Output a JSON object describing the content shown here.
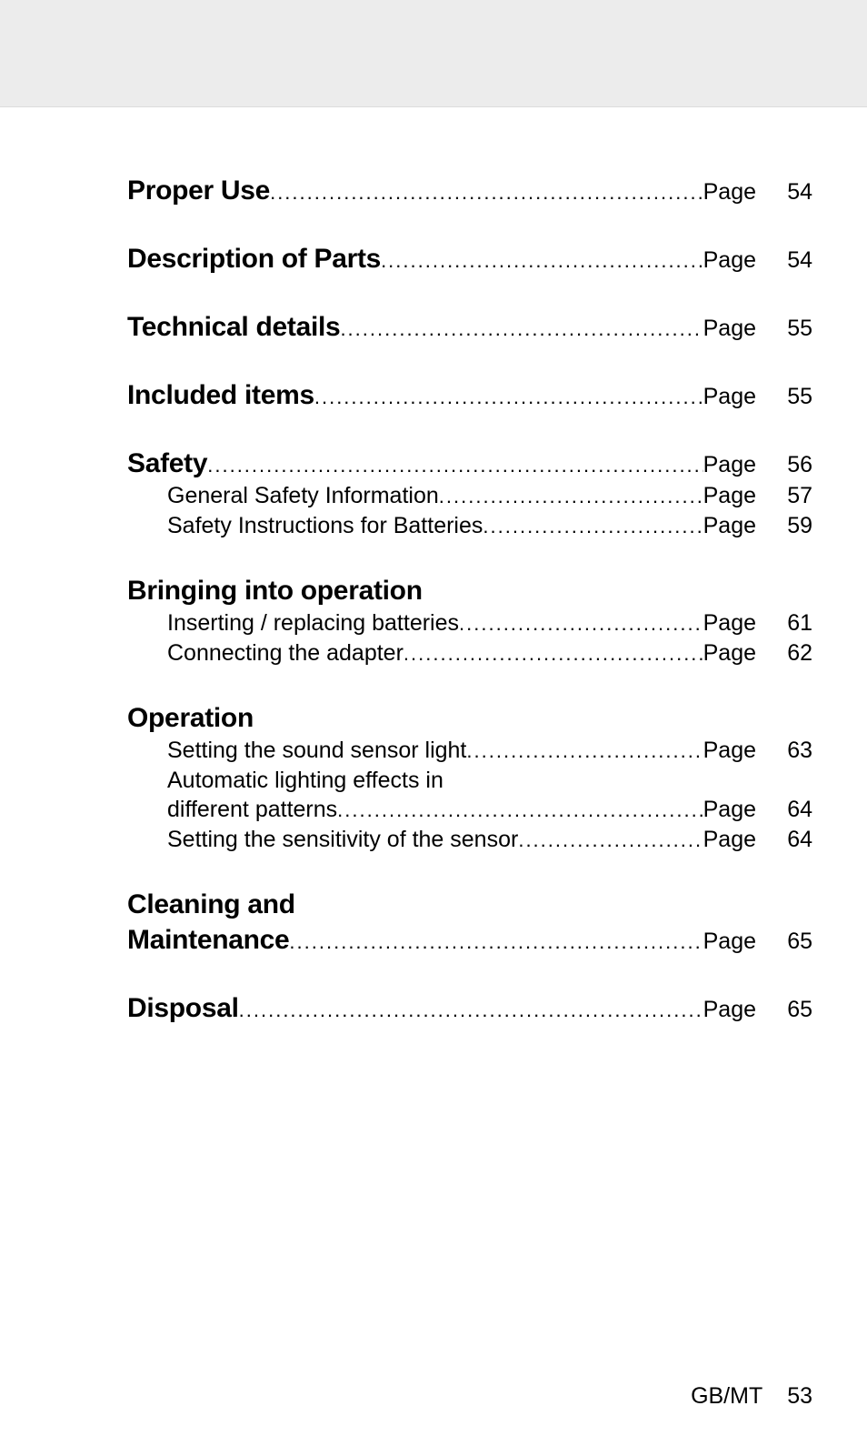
{
  "page_label": "Page",
  "sections": [
    {
      "heading": "Proper Use",
      "page": "54",
      "subs": [],
      "heading_has_page": true
    },
    {
      "heading": "Description of Parts",
      "page": "54",
      "subs": [],
      "heading_has_page": true
    },
    {
      "heading": "Technical details",
      "page": "55",
      "subs": [],
      "heading_has_page": true
    },
    {
      "heading": "Included items",
      "page": "55",
      "subs": [],
      "heading_has_page": true
    },
    {
      "heading": "Safety",
      "page": "56",
      "heading_has_page": true,
      "subs": [
        {
          "title": "General Safety Information",
          "page": "57"
        },
        {
          "title": "Safety Instructions for Batteries",
          "page": "59"
        }
      ]
    },
    {
      "heading": "Bringing into operation",
      "page": "",
      "heading_has_page": false,
      "subs": [
        {
          "title": "Inserting / replacing batteries",
          "page": "61"
        },
        {
          "title": "Connecting the adapter",
          "page": "62"
        }
      ]
    },
    {
      "heading": "Operation",
      "page": "",
      "heading_has_page": false,
      "subs": [
        {
          "title": "Setting the sound sensor light",
          "page": "63"
        },
        {
          "title_line1": "Automatic lighting effects in",
          "title": "different patterns",
          "page": "64",
          "multiline": true
        },
        {
          "title": "Setting the sensitivity of the sensor",
          "page": "64"
        }
      ]
    },
    {
      "heading_line1": "Cleaning and",
      "heading": "Maintenance",
      "page": "65",
      "subs": [],
      "heading_has_page": true,
      "heading_multiline": true
    },
    {
      "heading": "Disposal",
      "page": "65",
      "subs": [],
      "heading_has_page": true
    }
  ],
  "footer": {
    "region": "GB/MT",
    "page": "53"
  }
}
